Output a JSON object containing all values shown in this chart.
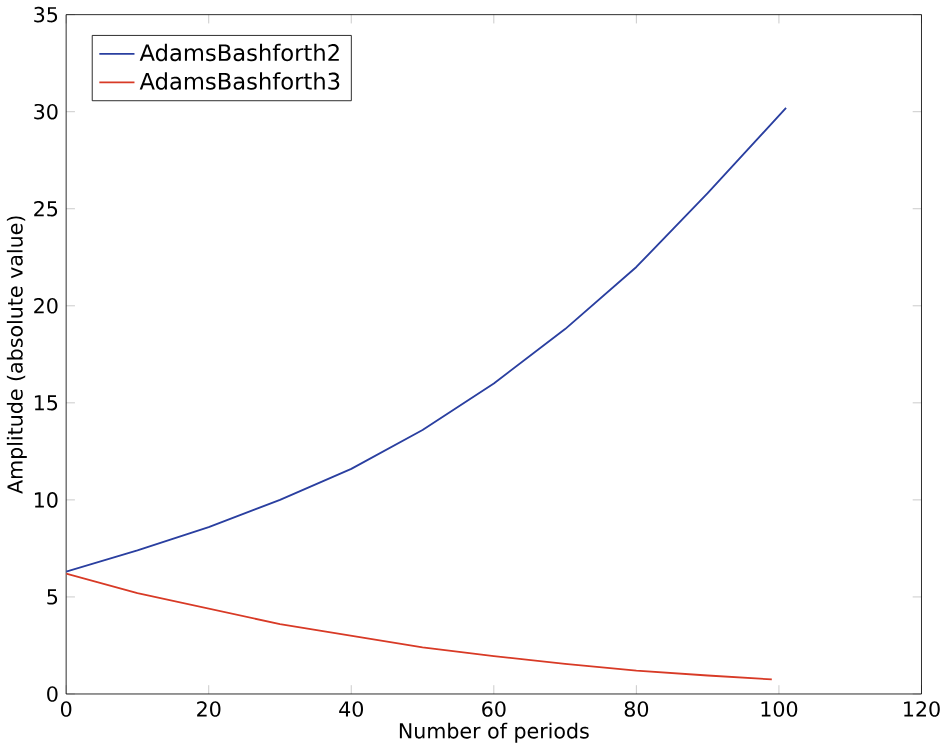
{
  "chart_data": {
    "type": "line",
    "xlabel": "Number of periods",
    "ylabel": "Amplitude (absolute value)",
    "xlim": [
      0,
      120
    ],
    "ylim": [
      0,
      35
    ],
    "xticks": [
      0,
      20,
      40,
      60,
      80,
      100,
      120
    ],
    "yticks": [
      0,
      5,
      10,
      15,
      20,
      25,
      30,
      35
    ],
    "legend": "top left",
    "grid": false,
    "series": [
      {
        "name": "AdamsBashforth2",
        "color": "#2a3fa0",
        "x": [
          0,
          10,
          20,
          30,
          40,
          50,
          60,
          70,
          80,
          90,
          101
        ],
        "values": [
          6.3,
          7.4,
          8.6,
          10.0,
          11.6,
          13.6,
          16.0,
          18.8,
          22.0,
          25.8,
          30.2
        ]
      },
      {
        "name": "AdamsBashforth3",
        "color": "#d83a26",
        "x": [
          0,
          10,
          20,
          30,
          40,
          50,
          60,
          70,
          80,
          90,
          99
        ],
        "values": [
          6.2,
          5.2,
          4.4,
          3.6,
          3.0,
          2.4,
          1.95,
          1.55,
          1.2,
          0.95,
          0.75
        ]
      }
    ]
  }
}
